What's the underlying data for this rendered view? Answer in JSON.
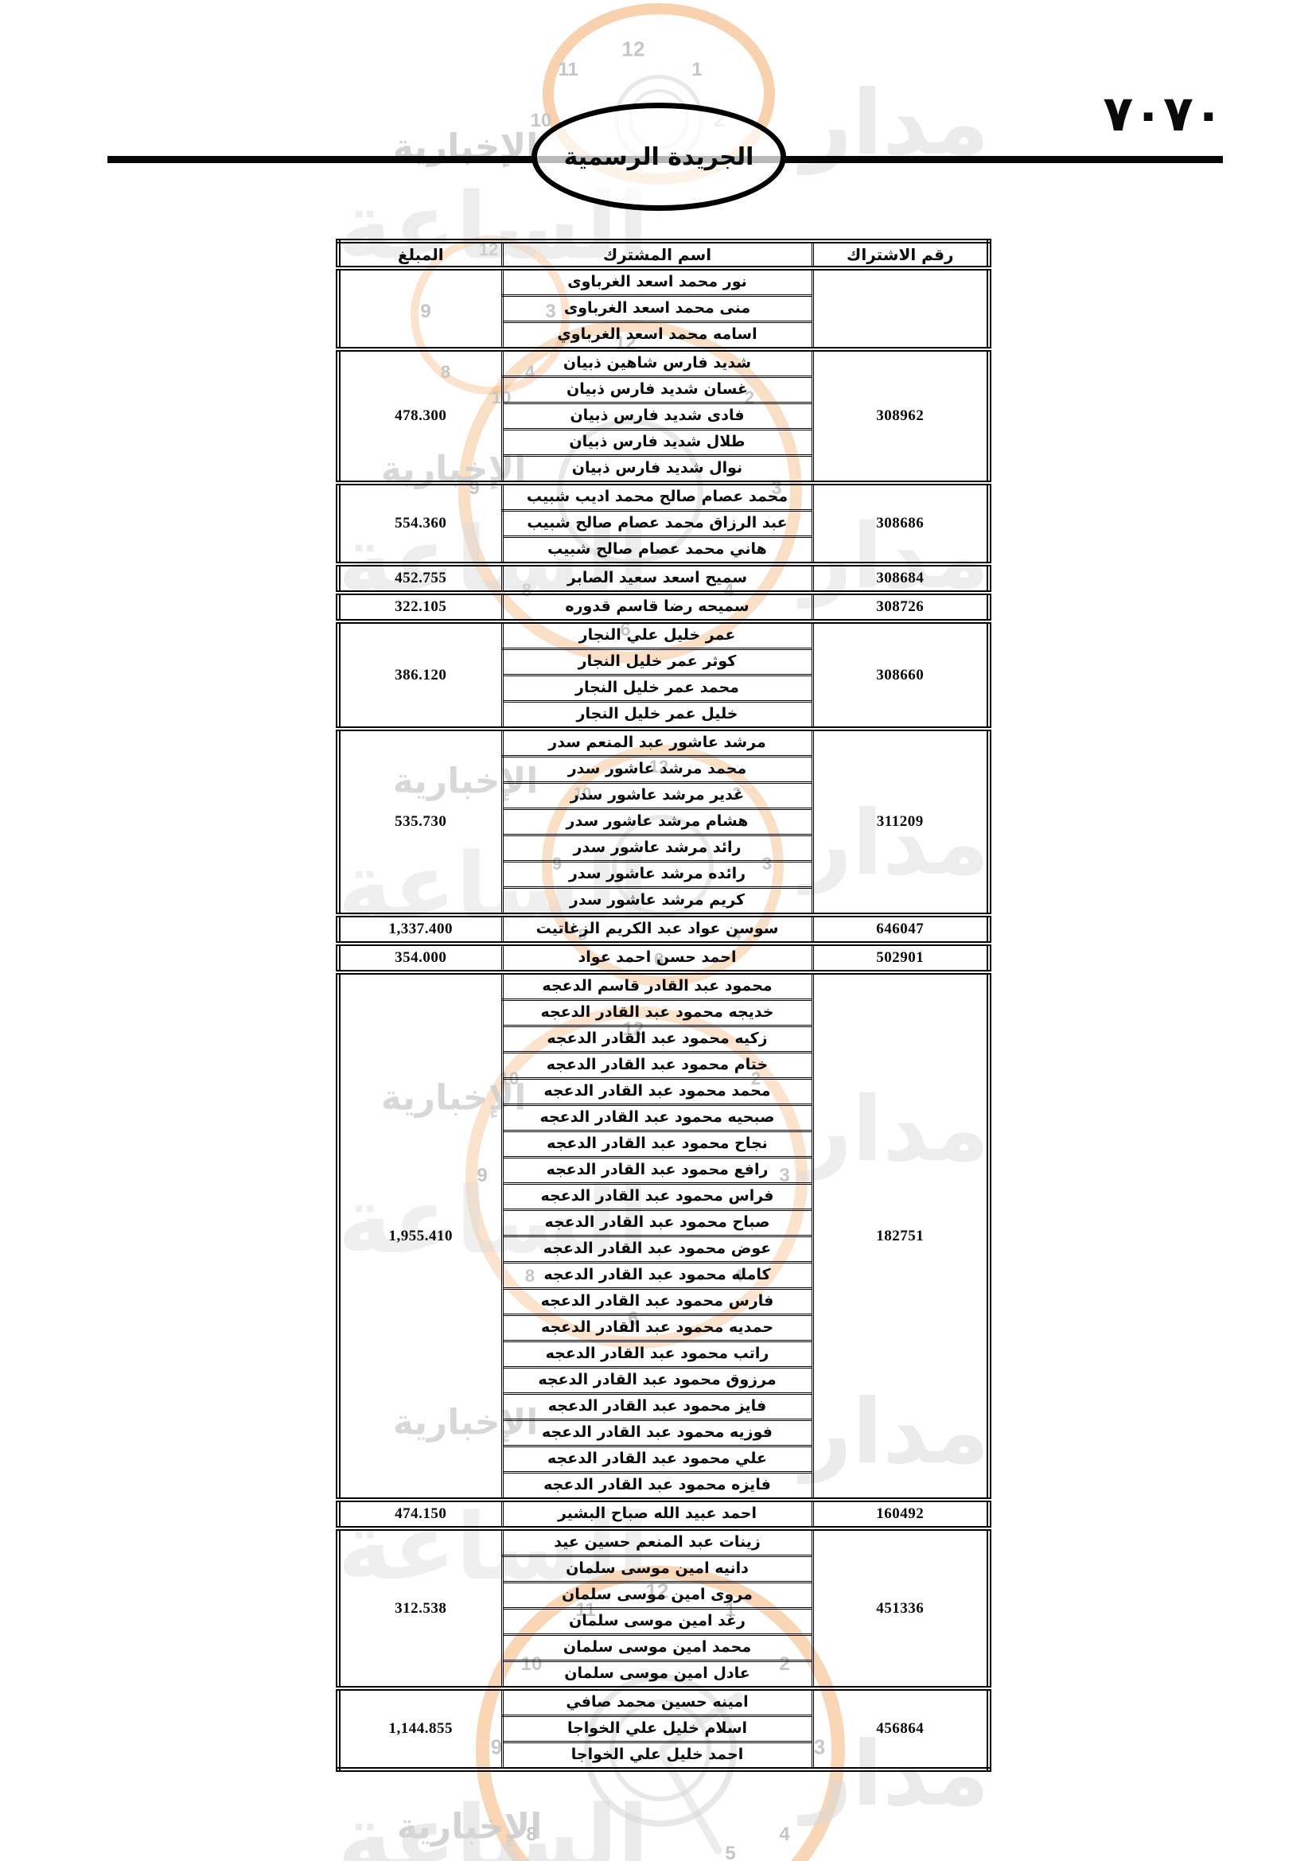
{
  "page": {
    "page_number": "٧٠٧٠",
    "gazette_title": "الجريدة الرسمية"
  },
  "watermark": {
    "agency_words": [
      "مدار",
      "الساعة",
      "الإخبارية"
    ],
    "clock_numerals": [
      "1",
      "2",
      "3",
      "4",
      "5",
      "6",
      "8",
      "9",
      "10",
      "11",
      "12"
    ],
    "ring_color": "#f2a35e",
    "word_color": "#d9d9d9",
    "accent_word_color": "#cccccc",
    "numeral_color": "#c6c6c6"
  },
  "table": {
    "headers": {
      "number": "رقم الاشتراك",
      "name": "اسم المشترك",
      "amount": "المبلغ"
    },
    "groups": [
      {
        "number": "",
        "amount": "",
        "names": [
          "نور محمد اسعد الغرباوى",
          "منى محمد اسعد الغرباوى",
          "اسامه محمد اسعد الغرباوي"
        ]
      },
      {
        "number": "308962",
        "amount": "478.300",
        "names": [
          "شديد فارس شاهين ذبيان",
          "غسان شديد فارس ذبيان",
          "فادى شديد فارس ذبيان",
          "طلال شديد فارس ذبيان",
          "نوال شديد فارس ذبيان"
        ]
      },
      {
        "number": "308686",
        "amount": "554.360",
        "names": [
          "محمد عصام صالح محمد اديب شبيب",
          "عبد الرزاق محمد عصام صالح شبيب",
          "هاني محمد عصام صالح شبيب"
        ]
      },
      {
        "number": "308684",
        "amount": "452.755",
        "names": [
          "سميح اسعد سعيد الصابر"
        ]
      },
      {
        "number": "308726",
        "amount": "322.105",
        "names": [
          "سميحه رضا قاسم قدوره"
        ]
      },
      {
        "number": "308660",
        "amount": "386.120",
        "names": [
          "عمر خليل علي النجار",
          "كوثر عمر خليل النجار",
          "محمد عمر خليل النجار",
          "خليل عمر خليل النجار"
        ]
      },
      {
        "number": "311209",
        "amount": "535.730",
        "names": [
          "مرشد عاشور عبد المنعم سدر",
          "محمد مرشد عاشور سدر",
          "غدير مرشد عاشور سدر",
          "هشام مرشد عاشور سدر",
          "رائد مرشد عاشور سدر",
          "رائده مرشد عاشور سدر",
          "كريم مرشد عاشور سدر"
        ]
      },
      {
        "number": "646047",
        "amount": "1,337.400",
        "names": [
          "سوسن عواد عبد الكريم الزغاتيت"
        ]
      },
      {
        "number": "502901",
        "amount": "354.000",
        "names": [
          "احمد حسن احمد عواد"
        ]
      },
      {
        "number": "182751",
        "amount": "1,955.410",
        "names": [
          "محمود عبد القادر قاسم الدعجه",
          "خديجه محمود عبد القادر الدعجه",
          "زكيه محمود عبد القادر الدعجه",
          "ختام محمود عبد القادر الدعجه",
          "محمد محمود عبد القادر الدعجه",
          "صبحيه محمود عبد القادر الدعجه",
          "نجاح محمود عبد القادر الدعجه",
          "رافع محمود عبد القادر الدعجه",
          "فراس محمود عبد القادر الدعجه",
          "صباح محمود عبد القادر الدعجه",
          "عوض محمود عبد القادر الدعجه",
          "كامله محمود عبد القادر الدعجه",
          "فارس محمود عبد القادر الدعجه",
          "حمديه محمود عبد القادر الدعجه",
          "راتب محمود عبد القادر الدعجه",
          "مرزوق محمود عبد القادر الدعجه",
          "فايز محمود عبد القادر الدعجه",
          "فوزيه محمود عبد القادر الدعجه",
          "علي محمود عبد القادر الدعجه",
          "فايزه محمود عبد القادر الدعجه"
        ]
      },
      {
        "number": "160492",
        "amount": "474.150",
        "names": [
          "احمد عبيد الله صباح البشير"
        ]
      },
      {
        "number": "451336",
        "amount": "312.538",
        "names": [
          "زينات عبد المنعم حسين عيد",
          "دانيه امين موسى سلمان",
          "مروى امين موسى سلمان",
          "رغد امين موسى سلمان",
          "محمد امين موسى سلمان",
          "عادل امين موسى سلمان"
        ]
      },
      {
        "number": "456864",
        "amount": "1,144.855",
        "names": [
          "امينه حسين محمد صافي",
          "اسلام خليل علي الخواجا",
          "احمد خليل علي الخواجا"
        ]
      }
    ]
  }
}
